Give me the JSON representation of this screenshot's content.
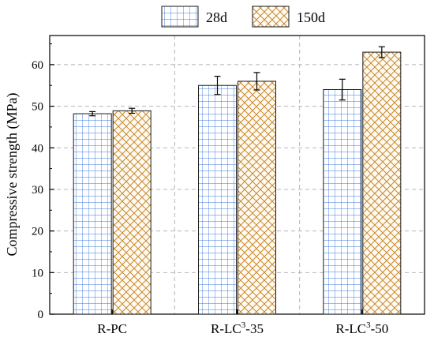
{
  "chart_data": {
    "type": "bar",
    "categories": [
      {
        "base": "R-PC",
        "sup": "",
        "suffix": ""
      },
      {
        "base": "R-LC",
        "sup": "3",
        "suffix": "-35"
      },
      {
        "base": "R-LC",
        "sup": "3",
        "suffix": "-50"
      }
    ],
    "series": [
      {
        "name": "28d",
        "values": [
          48.2,
          55.0,
          54.0
        ],
        "errors": [
          0.5,
          2.2,
          2.5
        ],
        "color": "#2f6fd6",
        "fill": "#ffffff",
        "pattern": "grid"
      },
      {
        "name": "150d",
        "values": [
          48.9,
          56.0,
          63.0
        ],
        "errors": [
          0.6,
          2.1,
          1.3
        ],
        "color": "#c8892e",
        "fill": "#fff6e8",
        "pattern": "crosshatch"
      }
    ],
    "title": "",
    "xlabel": "",
    "ylabel": "Compressive strength (MPa)",
    "ylim": [
      0,
      67
    ],
    "yticks": [
      0,
      10,
      20,
      30,
      40,
      50,
      60
    ],
    "grid": true,
    "legend_position": "top"
  }
}
